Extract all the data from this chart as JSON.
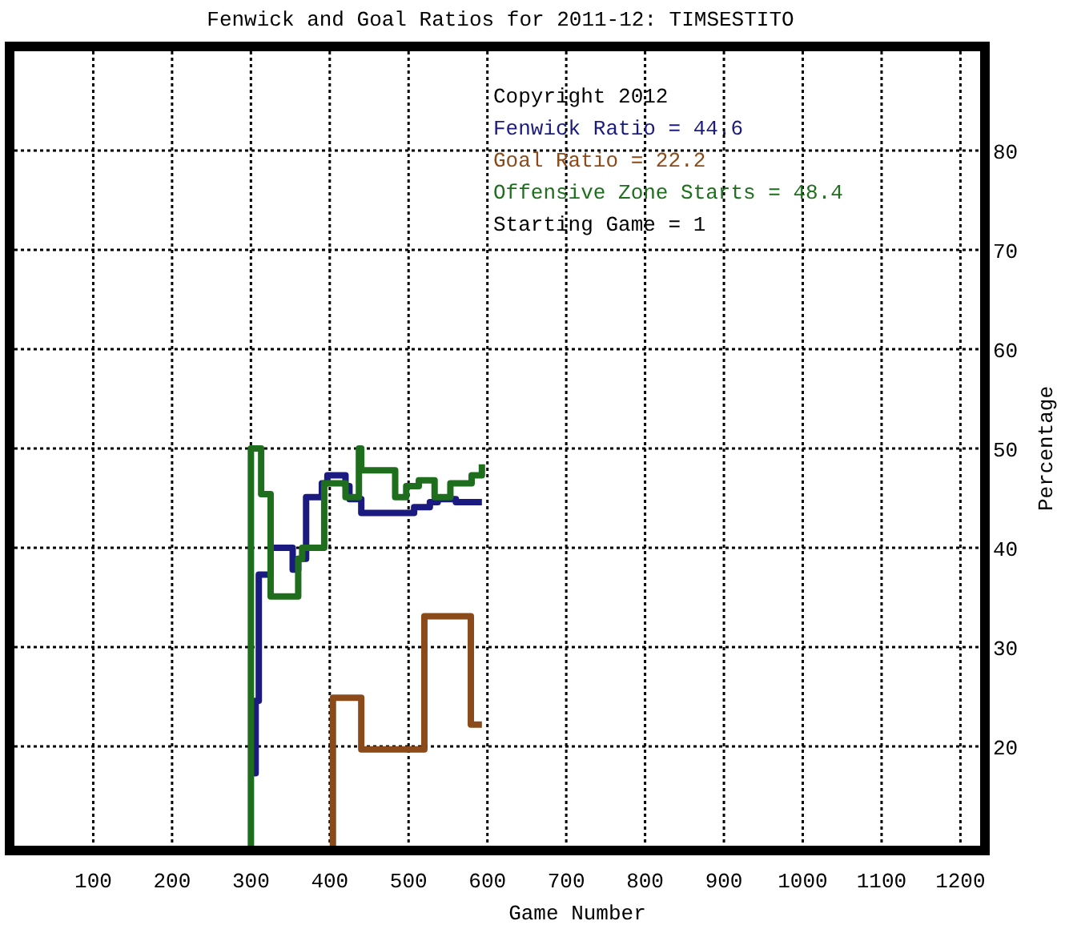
{
  "chart_data": {
    "type": "step",
    "title": "Fenwick and Goal Ratios for 2011-12: TIMSESTITO",
    "xlabel": "Game Number",
    "ylabel": "Percentage",
    "xlim": [
      0,
      1225
    ],
    "ylim": [
      10,
      90
    ],
    "xticks": [
      100,
      200,
      300,
      400,
      500,
      600,
      700,
      800,
      900,
      1000,
      1100,
      1200
    ],
    "yticks": [
      20,
      30,
      40,
      50,
      60,
      70,
      80
    ],
    "grid": true,
    "legend": "top right",
    "line_style": "solid",
    "annotations": [
      "Copyright 2012",
      "Starting Game = 1"
    ],
    "series": [
      {
        "name": "Fenwick Ratio = 44.6",
        "color": "#1a1a80",
        "x": [
          303,
          306,
          310,
          325,
          353,
          360,
          370,
          390,
          397,
          420,
          425,
          440,
          507,
          527,
          537,
          560,
          593
        ],
        "values": [
          17.3,
          24.6,
          37.3,
          40,
          37.8,
          38.9,
          45.1,
          46.5,
          47.3,
          46.2,
          44.9,
          43.5,
          44.1,
          44.6,
          44.9,
          44.6,
          44.6
        ]
      },
      {
        "name": "Goal Ratio = 22.2",
        "color": "#8b4a1a",
        "x": [
          403,
          404,
          440,
          520,
          579,
          593
        ],
        "values": [
          10,
          24.9,
          19.7,
          33.1,
          22.2,
          22.2
        ]
      },
      {
        "name": "Offensive Zone Starts = 48.4",
        "color": "#1e6e1e",
        "x": [
          299,
          300,
          313,
          325,
          360,
          365,
          393,
          420,
          437,
          440,
          483,
          497,
          513,
          533,
          553,
          580,
          593
        ],
        "values": [
          10,
          50,
          45.4,
          35.1,
          38.9,
          40,
          46.5,
          45.1,
          50,
          47.8,
          45.1,
          46.2,
          46.8,
          45.1,
          46.5,
          47.3,
          48.4
        ]
      }
    ]
  }
}
